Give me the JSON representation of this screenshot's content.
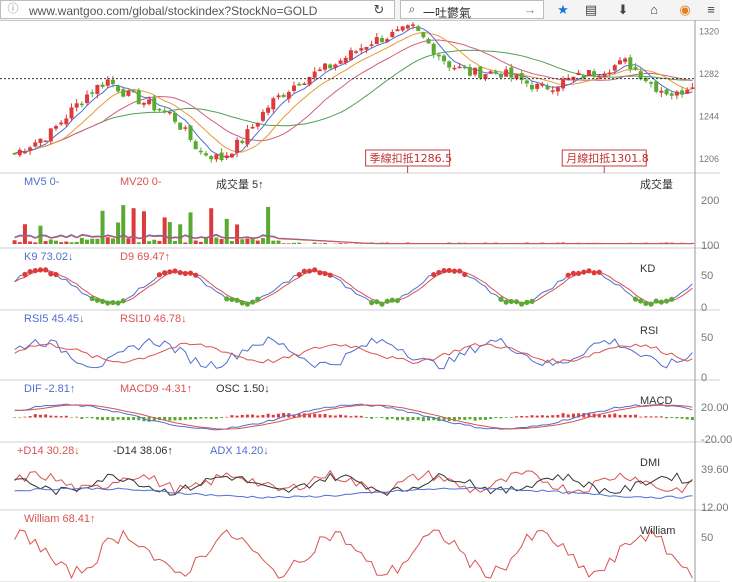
{
  "browser": {
    "url": "www.wantgoo.com/global/stockindex?StockNo=GOLD",
    "search_text": "一吐鬱氣"
  },
  "colors": {
    "ma_blue": "#4f6fd0",
    "ma_red": "#d9534f",
    "candle_red": "#dd3b3b",
    "candle_green": "#5aaa32",
    "pink": "#d06080",
    "orange": "#e89838",
    "green_line": "#50a050",
    "axis": "#777"
  },
  "panels": {
    "price": {
      "yticks": [
        "1320",
        "1282",
        "1244",
        "1206"
      ],
      "markers": [
        {
          "label": "季線扣抵1286.5",
          "value": 1286.5
        },
        {
          "label": "月線扣抵1301.8",
          "value": 1301.8
        }
      ],
      "ref_price": 1277
    },
    "volume": {
      "legend": [
        {
          "text": "MV5 0-",
          "color": "#4f6fd0"
        },
        {
          "text": "MV20 0-",
          "color": "#d9534f"
        },
        {
          "text": "成交量 5↑",
          "color": "#333333"
        }
      ],
      "title": "成交量",
      "yticks": [
        "200",
        "100"
      ]
    },
    "kd": {
      "legend": [
        {
          "text": "K9 73.02↓",
          "color": "#4f6fd0"
        },
        {
          "text": "D9 69.47↑",
          "color": "#d9534f"
        }
      ],
      "title": "KD",
      "yticks": [
        "50",
        "0"
      ]
    },
    "rsi": {
      "legend": [
        {
          "text": "RSI5 45.45↓",
          "color": "#4f6fd0"
        },
        {
          "text": "RSI10 46.78↓",
          "color": "#d9534f"
        }
      ],
      "title": "RSI",
      "yticks": [
        "50",
        "0"
      ]
    },
    "macd": {
      "legend": [
        {
          "text": "DIF -2.81↑",
          "color": "#4f6fd0"
        },
        {
          "text": "MACD9 -4.31↑",
          "color": "#d9534f"
        },
        {
          "text": "OSC 1.50↓",
          "color": "#333333"
        }
      ],
      "title": "MACD",
      "yticks": [
        "20.00",
        "-20.00"
      ]
    },
    "dmi": {
      "legend": [
        {
          "text": "+D14 30.28↓",
          "color": "#d9534f"
        },
        {
          "text": "-D14 38.06↑",
          "color": "#333333"
        },
        {
          "text": "ADX 14.20↓",
          "color": "#4f6fd0"
        }
      ],
      "title": "DMI",
      "yticks": [
        "39.60",
        "12.00"
      ]
    },
    "william": {
      "legend": [
        {
          "text": "William 68.41↑",
          "color": "#d9534f"
        }
      ],
      "title": "William",
      "yticks": [
        "50"
      ]
    }
  }
}
